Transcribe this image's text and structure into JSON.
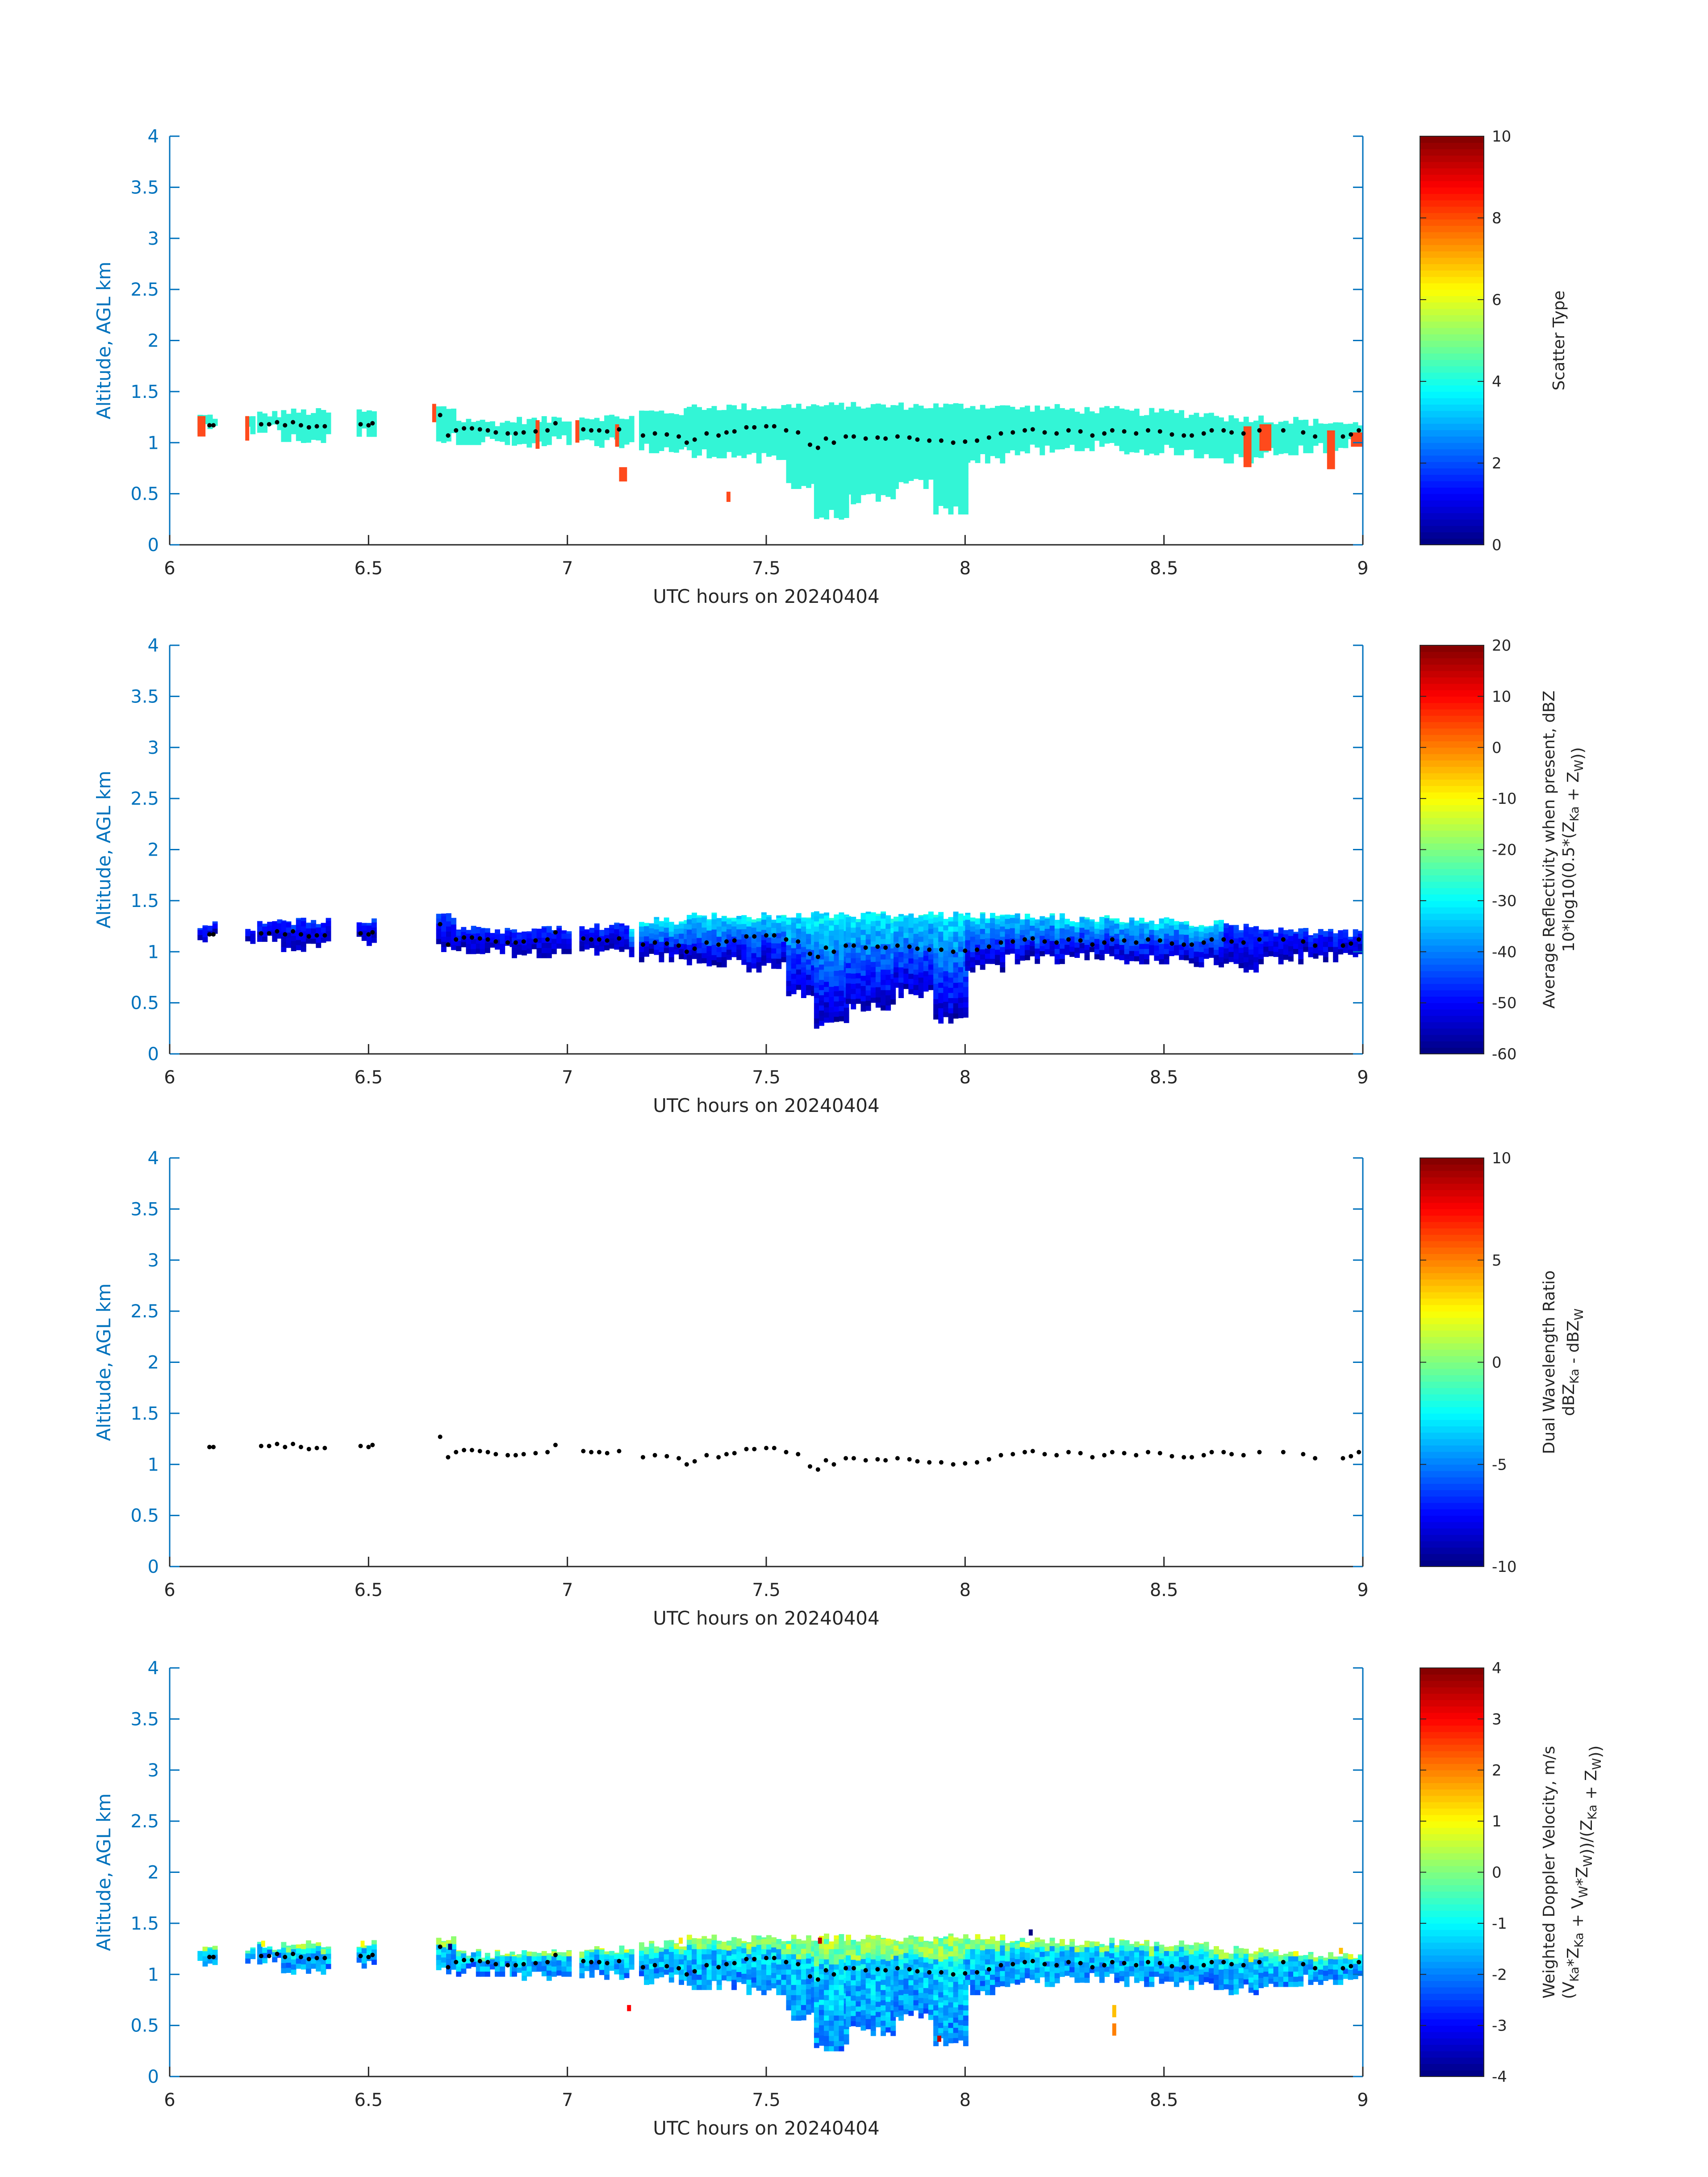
{
  "figure_ticks": {
    "x_ticks": [
      "6",
      "6.5",
      "7",
      "7.5",
      "8",
      "8.5",
      "9"
    ],
    "y_ticks": [
      "0",
      "0.5",
      "1",
      "1.5",
      "2",
      "2.5",
      "3",
      "3.5",
      "4"
    ]
  },
  "colors": {
    "axis_left": "#0072BD",
    "axis_text": "#262626",
    "scatter_cloud": "#33F5D6",
    "scatter_other": "#FF4A1C",
    "height_marker": "#000000"
  },
  "chart_data": [
    {
      "type": "heatmap",
      "xlabel": "UTC hours on 20240404",
      "ylabel": "Altitude, AGL km",
      "xlim": [
        6,
        9
      ],
      "ylim": [
        0,
        4
      ],
      "grid": false,
      "colorbar": {
        "label_lines": [
          "Scatter Type"
        ],
        "ticks": [
          "0",
          "2",
          "4",
          "6",
          "8",
          "10"
        ],
        "range": [
          0,
          10
        ],
        "colormap": "jet"
      },
      "field": "scatter_type",
      "values_note": "cloud echo mostly type ~3.5 (cyan); isolated type ~8 (red-orange) pixels"
    },
    {
      "type": "heatmap",
      "xlabel": "UTC hours on 20240404",
      "ylabel": "Altitude, AGL km",
      "xlim": [
        6,
        9
      ],
      "ylim": [
        0,
        4
      ],
      "grid": false,
      "colorbar": {
        "label_lines": [
          "Average Reflectivity when present, dBZ",
          "10*log10(0.5*(Z_Ka + Z_W))"
        ],
        "ticks": [
          "-60",
          "-50",
          "-40",
          "-30",
          "-20",
          "-10",
          "0",
          "10",
          "20"
        ],
        "range": [
          -60,
          20
        ],
        "colormap": "jet"
      },
      "field": "reflectivity"
    },
    {
      "type": "heatmap",
      "xlabel": "UTC hours on 20240404",
      "ylabel": "Altitude, AGL km",
      "xlim": [
        6,
        9
      ],
      "ylim": [
        0,
        4
      ],
      "grid": false,
      "colorbar": {
        "label_lines": [
          "Dual Wavelength Ratio",
          "dBZ_Ka - dBZ_W"
        ],
        "ticks": [
          "-10",
          "-5",
          "0",
          "5",
          "10"
        ],
        "range": [
          -10,
          10
        ],
        "colormap": "jet"
      },
      "field": "dwr_empty"
    },
    {
      "type": "heatmap",
      "xlabel": "UTC hours on 20240404",
      "ylabel": "Altitude, AGL km",
      "xlim": [
        6,
        9
      ],
      "ylim": [
        0,
        4
      ],
      "grid": false,
      "colorbar": {
        "label_lines": [
          "Weighted Doppler Velocity, m/s",
          "(V_Ka*Z_Ka + V_W*Z_W))/(Z_Ka + Z_W))"
        ],
        "ticks": [
          "-4",
          "-3",
          "-2",
          "-1",
          "0",
          "1",
          "2",
          "3",
          "4"
        ],
        "range": [
          -4,
          4
        ],
        "colormap": "jet"
      },
      "field": "doppler"
    }
  ],
  "segments": [
    [
      6.07,
      6.12,
      1.08,
      1.26
    ],
    [
      6.19,
      6.21,
      1.08,
      1.24
    ],
    [
      6.22,
      6.28,
      1.1,
      1.28
    ],
    [
      6.28,
      6.4,
      1.0,
      1.3
    ],
    [
      6.47,
      6.52,
      1.06,
      1.3
    ],
    [
      6.67,
      6.72,
      1.0,
      1.34
    ],
    [
      6.72,
      6.78,
      0.98,
      1.22
    ],
    [
      6.78,
      6.86,
      0.98,
      1.2
    ],
    [
      6.86,
      6.96,
      0.94,
      1.22
    ],
    [
      6.96,
      7.0,
      0.98,
      1.24
    ],
    [
      7.03,
      7.16,
      0.95,
      1.25
    ],
    [
      7.18,
      7.3,
      0.9,
      1.3
    ],
    [
      7.3,
      7.45,
      0.85,
      1.35
    ],
    [
      7.45,
      7.55,
      0.8,
      1.35
    ],
    [
      7.55,
      7.62,
      0.55,
      1.36
    ],
    [
      7.62,
      7.7,
      0.25,
      1.36
    ],
    [
      7.7,
      7.82,
      0.4,
      1.36
    ],
    [
      7.82,
      7.92,
      0.55,
      1.36
    ],
    [
      7.92,
      8.0,
      0.3,
      1.36
    ],
    [
      8.0,
      8.1,
      0.8,
      1.36
    ],
    [
      8.1,
      8.25,
      0.88,
      1.34
    ],
    [
      8.25,
      8.4,
      0.92,
      1.32
    ],
    [
      8.4,
      8.55,
      0.88,
      1.3
    ],
    [
      8.55,
      8.65,
      0.85,
      1.28
    ],
    [
      8.65,
      8.75,
      0.8,
      1.24
    ],
    [
      8.75,
      8.85,
      0.88,
      1.22
    ],
    [
      8.85,
      8.95,
      0.9,
      1.2
    ],
    [
      8.95,
      9.0,
      0.95,
      1.18
    ]
  ],
  "red_marks": [
    [
      6.07,
      6.09,
      1.06,
      1.26
    ],
    [
      6.19,
      6.2,
      1.02,
      1.26
    ],
    [
      6.66,
      6.67,
      1.2,
      1.38
    ],
    [
      6.92,
      6.93,
      0.94,
      1.22
    ],
    [
      7.02,
      7.03,
      1.0,
      1.22
    ],
    [
      7.12,
      7.13,
      0.96,
      1.18
    ],
    [
      7.13,
      7.15,
      0.62,
      0.76
    ],
    [
      7.4,
      7.41,
      0.42,
      0.52
    ],
    [
      8.7,
      8.72,
      0.76,
      1.16
    ],
    [
      8.74,
      8.77,
      0.92,
      1.18
    ],
    [
      8.91,
      8.93,
      0.74,
      1.12
    ],
    [
      8.97,
      9.0,
      0.96,
      1.1
    ]
  ],
  "height_points": [
    [
      6.1,
      1.17
    ],
    [
      6.11,
      1.17
    ],
    [
      6.23,
      1.18
    ],
    [
      6.25,
      1.18
    ],
    [
      6.27,
      1.2
    ],
    [
      6.29,
      1.17
    ],
    [
      6.31,
      1.2
    ],
    [
      6.33,
      1.17
    ],
    [
      6.35,
      1.15
    ],
    [
      6.37,
      1.16
    ],
    [
      6.39,
      1.16
    ],
    [
      6.48,
      1.18
    ],
    [
      6.5,
      1.17
    ],
    [
      6.51,
      1.19
    ],
    [
      6.68,
      1.27
    ],
    [
      6.7,
      1.07
    ],
    [
      6.72,
      1.12
    ],
    [
      6.74,
      1.14
    ],
    [
      6.76,
      1.14
    ],
    [
      6.78,
      1.13
    ],
    [
      6.8,
      1.12
    ],
    [
      6.82,
      1.1
    ],
    [
      6.85,
      1.09
    ],
    [
      6.87,
      1.09
    ],
    [
      6.89,
      1.1
    ],
    [
      6.92,
      1.11
    ],
    [
      6.95,
      1.12
    ],
    [
      6.97,
      1.19
    ],
    [
      7.04,
      1.13
    ],
    [
      7.06,
      1.12
    ],
    [
      7.08,
      1.12
    ],
    [
      7.1,
      1.11
    ],
    [
      7.13,
      1.13
    ],
    [
      7.19,
      1.07
    ],
    [
      7.22,
      1.09
    ],
    [
      7.25,
      1.08
    ],
    [
      7.28,
      1.06
    ],
    [
      7.3,
      1.0
    ],
    [
      7.32,
      1.03
    ],
    [
      7.35,
      1.09
    ],
    [
      7.38,
      1.07
    ],
    [
      7.4,
      1.1
    ],
    [
      7.42,
      1.11
    ],
    [
      7.45,
      1.15
    ],
    [
      7.47,
      1.15
    ],
    [
      7.5,
      1.16
    ],
    [
      7.52,
      1.16
    ],
    [
      7.55,
      1.12
    ],
    [
      7.58,
      1.1
    ],
    [
      7.61,
      0.98
    ],
    [
      7.63,
      0.95
    ],
    [
      7.65,
      1.04
    ],
    [
      7.67,
      1.0
    ],
    [
      7.7,
      1.06
    ],
    [
      7.72,
      1.06
    ],
    [
      7.75,
      1.04
    ],
    [
      7.78,
      1.05
    ],
    [
      7.8,
      1.04
    ],
    [
      7.83,
      1.06
    ],
    [
      7.86,
      1.05
    ],
    [
      7.88,
      1.03
    ],
    [
      7.91,
      1.02
    ],
    [
      7.94,
      1.02
    ],
    [
      7.97,
      1.0
    ],
    [
      8.0,
      1.01
    ],
    [
      8.03,
      1.02
    ],
    [
      8.06,
      1.05
    ],
    [
      8.09,
      1.09
    ],
    [
      8.12,
      1.1
    ],
    [
      8.15,
      1.12
    ],
    [
      8.17,
      1.13
    ],
    [
      8.2,
      1.1
    ],
    [
      8.23,
      1.09
    ],
    [
      8.26,
      1.12
    ],
    [
      8.29,
      1.11
    ],
    [
      8.32,
      1.07
    ],
    [
      8.35,
      1.09
    ],
    [
      8.37,
      1.12
    ],
    [
      8.4,
      1.11
    ],
    [
      8.43,
      1.09
    ],
    [
      8.46,
      1.12
    ],
    [
      8.49,
      1.11
    ],
    [
      8.52,
      1.08
    ],
    [
      8.55,
      1.07
    ],
    [
      8.57,
      1.07
    ],
    [
      8.6,
      1.09
    ],
    [
      8.62,
      1.12
    ],
    [
      8.65,
      1.12
    ],
    [
      8.67,
      1.1
    ],
    [
      8.7,
      1.09
    ],
    [
      8.74,
      1.12
    ],
    [
      8.8,
      1.12
    ],
    [
      8.85,
      1.1
    ],
    [
      8.88,
      1.06
    ],
    [
      8.95,
      1.06
    ],
    [
      8.97,
      1.08
    ],
    [
      8.99,
      1.12
    ]
  ],
  "doppler_hot": [
    [
      6.23,
      6.24,
      1.27,
      1.33,
      1.0
    ],
    [
      6.48,
      6.49,
      1.27,
      1.33,
      1.0
    ],
    [
      6.7,
      6.71,
      1.24,
      1.3,
      -4.0
    ],
    [
      7.15,
      7.16,
      0.64,
      0.7,
      3.0
    ],
    [
      7.28,
      7.29,
      1.3,
      1.36,
      1.2
    ],
    [
      7.63,
      7.64,
      1.3,
      1.36,
      3.5
    ],
    [
      7.93,
      7.94,
      0.34,
      0.4,
      3.5
    ],
    [
      8.16,
      8.17,
      1.38,
      1.44,
      -4.0
    ],
    [
      8.37,
      8.38,
      0.58,
      0.7,
      1.5
    ],
    [
      8.37,
      8.38,
      0.4,
      0.52,
      2.0
    ],
    [
      8.94,
      8.95,
      1.2,
      1.26,
      1.5
    ]
  ]
}
